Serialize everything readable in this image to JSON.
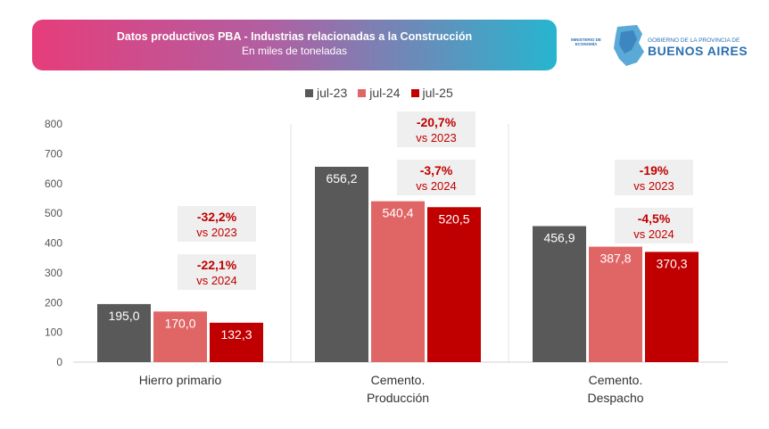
{
  "header": {
    "title": "Datos productivos PBA - Industrias relacionadas a la Construcción",
    "subtitle": "En miles de toneladas"
  },
  "logo": {
    "ministry": "MINISTERIO DE ECONOMÍA",
    "government": "GOBIERNO DE LA PROVINCIA DE",
    "province": "BUENOS AIRES"
  },
  "colors": {
    "jul23": "#595959",
    "jul24": "#e06666",
    "jul25": "#c00000",
    "accent_text": "#c00000",
    "box_bg": "#efefef"
  },
  "chart_data": {
    "type": "bar",
    "title": "Datos productivos PBA - Industrias relacionadas a la Construcción",
    "subtitle": "En miles de toneladas",
    "categories": [
      "Hierro primario",
      "Cemento. Producción",
      "Cemento. Despacho"
    ],
    "category_lines": [
      [
        "Hierro primario"
      ],
      [
        "Cemento.",
        "Producción"
      ],
      [
        "Cemento.",
        "Despacho"
      ]
    ],
    "series": [
      {
        "name": "jul-23",
        "color": "#595959",
        "values": [
          195.0,
          656.2,
          456.9
        ],
        "labels": [
          "195,0",
          "656,2",
          "456,9"
        ]
      },
      {
        "name": "jul-24",
        "color": "#e06666",
        "values": [
          170.0,
          540.4,
          387.8
        ],
        "labels": [
          "170,0",
          "540,4",
          "387,8"
        ]
      },
      {
        "name": "jul-25",
        "color": "#c00000",
        "values": [
          132.3,
          520.5,
          370.3
        ],
        "labels": [
          "132,3",
          "520,5",
          "370,3"
        ]
      }
    ],
    "ylim": [
      0,
      800
    ],
    "yticks": [
      0,
      100,
      200,
      300,
      400,
      500,
      600,
      700,
      800
    ],
    "legend_position": "top",
    "grid": false,
    "annotations": [
      {
        "category": "Hierro primario",
        "items": [
          {
            "value": "-32,2%",
            "ref": "vs 2023"
          },
          {
            "value": "-22,1%",
            "ref": "vs 2024"
          }
        ]
      },
      {
        "category": "Cemento. Producción",
        "items": [
          {
            "value": "-20,7%",
            "ref": "vs 2023"
          },
          {
            "value": "-3,7%",
            "ref": "vs 2024"
          }
        ]
      },
      {
        "category": "Cemento. Despacho",
        "items": [
          {
            "value": "-19%",
            "ref": "vs 2023"
          },
          {
            "value": "-4,5%",
            "ref": "vs 2024"
          }
        ]
      }
    ]
  }
}
